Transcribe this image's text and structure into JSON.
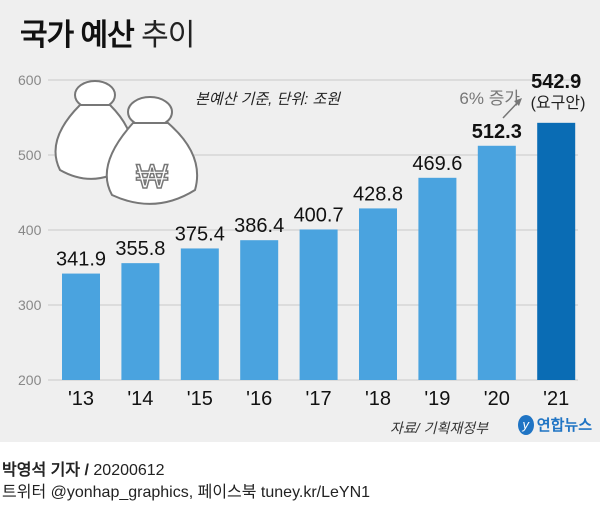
{
  "title_bold": "국가 예산",
  "title_light": "추이",
  "chart_data": {
    "type": "bar",
    "categories": [
      "'13",
      "'14",
      "'15",
      "'16",
      "'17",
      "'18",
      "'19",
      "'20",
      "'21"
    ],
    "values": [
      341.9,
      355.8,
      375.4,
      386.4,
      400.7,
      428.8,
      469.6,
      512.3,
      542.9
    ],
    "value_labels": [
      "341.9",
      "355.8",
      "375.4",
      "386.4",
      "400.7",
      "428.8",
      "469.6",
      "512.3",
      "542.9"
    ],
    "ylim": [
      200,
      600
    ],
    "yticks": [
      "200",
      "300",
      "400",
      "500",
      "600"
    ],
    "grid": true,
    "note": "본예산 기준, 단위: 조원",
    "annotation_growth": "6% 증가",
    "annotation_last": "(요구안)",
    "bar_color": "#4aa3df",
    "highlight_color": "#0a6cb4"
  },
  "source": "자료/ 기획재정부",
  "logo": "연합뉴스",
  "credit_author": "박영석 기자 /",
  "credit_date": "20200612",
  "credit_social": "트위터 @yonhap_graphics, 페이스북 tuney.kr/LeYN1"
}
